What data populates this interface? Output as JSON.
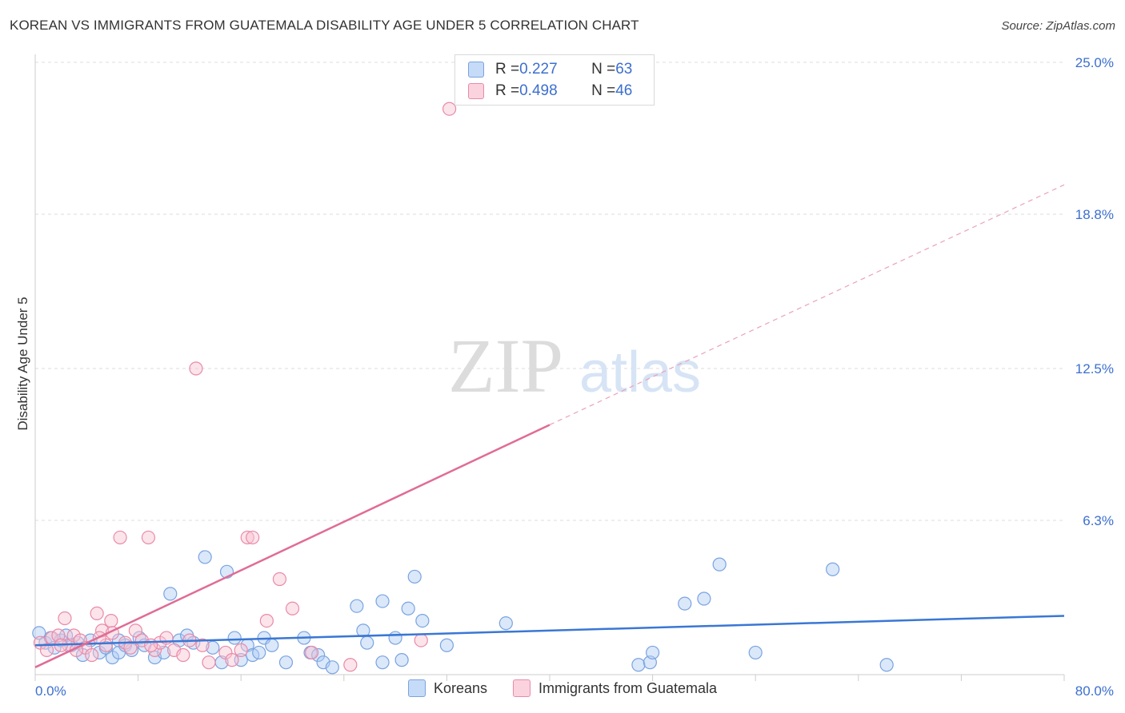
{
  "title": "KOREAN VS IMMIGRANTS FROM GUATEMALA DISABILITY AGE UNDER 5 CORRELATION CHART",
  "source": "Source: ZipAtlas.com",
  "watermark": {
    "zip": "ZIP",
    "atlas": "atlas"
  },
  "legend": {
    "r_label": "R = ",
    "n_label": "N = ",
    "rows": [
      {
        "name": "Koreans",
        "r": "0.227",
        "n": "63",
        "fill": "#aecbf3",
        "stroke": "#7aa3e0"
      },
      {
        "name": "Immigrants from Guatemala",
        "r": "0.498",
        "n": "46",
        "fill": "#f8c3d3",
        "stroke": "#e98aa8"
      }
    ]
  },
  "chart_data": {
    "type": "scatter",
    "title": "KOREAN VS IMMIGRANTS FROM GUATEMALA DISABILITY AGE UNDER 5 CORRELATION CHART",
    "xlabel": "",
    "ylabel": "Disability Age Under 5",
    "xlim": [
      0,
      80
    ],
    "ylim": [
      0,
      25
    ],
    "x_tick_labels": [
      "0.0%",
      "80.0%"
    ],
    "y_ticks": [
      6.3,
      12.5,
      18.8,
      25.0
    ],
    "y_tick_labels": [
      "6.3%",
      "12.5%",
      "18.8%",
      "25.0%"
    ],
    "grid": true,
    "series": [
      {
        "name": "Koreans",
        "color": "#7aa3e0",
        "line_color": "#3a77d4",
        "points": [
          [
            0.3,
            1.7
          ],
          [
            0.8,
            1.3
          ],
          [
            1.2,
            1.5
          ],
          [
            1.5,
            1.1
          ],
          [
            2.0,
            1.4
          ],
          [
            2.4,
            1.6
          ],
          [
            2.8,
            1.2
          ],
          [
            3.3,
            1.3
          ],
          [
            3.7,
            0.8
          ],
          [
            4.3,
            1.4
          ],
          [
            5.0,
            0.9
          ],
          [
            5.5,
            1.1
          ],
          [
            6.0,
            0.7
          ],
          [
            6.5,
            0.9
          ],
          [
            7.0,
            1.2
          ],
          [
            7.5,
            1.0
          ],
          [
            8.1,
            1.5
          ],
          [
            8.5,
            1.2
          ],
          [
            9.3,
            0.7
          ],
          [
            10.0,
            0.9
          ],
          [
            10.5,
            3.3
          ],
          [
            11.2,
            1.4
          ],
          [
            11.8,
            1.6
          ],
          [
            12.3,
            1.3
          ],
          [
            13.2,
            4.8
          ],
          [
            13.8,
            1.1
          ],
          [
            14.5,
            0.5
          ],
          [
            14.9,
            4.2
          ],
          [
            15.5,
            1.5
          ],
          [
            16.0,
            0.6
          ],
          [
            16.5,
            1.2
          ],
          [
            16.9,
            0.8
          ],
          [
            17.4,
            0.9
          ],
          [
            17.8,
            1.5
          ],
          [
            18.4,
            1.2
          ],
          [
            19.5,
            0.5
          ],
          [
            20.9,
            1.5
          ],
          [
            21.4,
            0.9
          ],
          [
            22.0,
            0.8
          ],
          [
            22.4,
            0.5
          ],
          [
            23.1,
            0.3
          ],
          [
            25.0,
            2.8
          ],
          [
            25.5,
            1.8
          ],
          [
            25.8,
            1.3
          ],
          [
            27.0,
            0.5
          ],
          [
            28.0,
            1.5
          ],
          [
            28.5,
            0.6
          ],
          [
            29.0,
            2.7
          ],
          [
            29.5,
            4.0
          ],
          [
            30.1,
            2.2
          ],
          [
            32.0,
            1.2
          ],
          [
            36.6,
            2.1
          ],
          [
            46.9,
            0.4
          ],
          [
            47.8,
            0.5
          ],
          [
            48.0,
            0.9
          ],
          [
            50.5,
            2.9
          ],
          [
            52.0,
            3.1
          ],
          [
            53.2,
            4.5
          ],
          [
            56.0,
            0.9
          ],
          [
            62.0,
            4.3
          ],
          [
            66.2,
            0.4
          ],
          [
            27.0,
            3.0
          ],
          [
            6.5,
            1.4
          ]
        ],
        "trend": {
          "x0": 0,
          "y0": 1.2,
          "x1": 80,
          "y1": 2.4
        }
      },
      {
        "name": "Immigrants from Guatemala",
        "color": "#e98aa8",
        "line_color": "#e06c96",
        "points": [
          [
            0.4,
            1.3
          ],
          [
            0.9,
            1.0
          ],
          [
            1.3,
            1.5
          ],
          [
            1.8,
            1.6
          ],
          [
            2.3,
            2.3
          ],
          [
            2.6,
            1.2
          ],
          [
            3.0,
            1.6
          ],
          [
            3.5,
            1.4
          ],
          [
            3.9,
            1.1
          ],
          [
            4.4,
            0.8
          ],
          [
            4.8,
            2.5
          ],
          [
            5.2,
            1.8
          ],
          [
            5.5,
            1.2
          ],
          [
            5.9,
            2.2
          ],
          [
            6.0,
            1.7
          ],
          [
            6.6,
            5.6
          ],
          [
            7.0,
            1.3
          ],
          [
            7.4,
            1.1
          ],
          [
            7.8,
            1.8
          ],
          [
            8.3,
            1.4
          ],
          [
            8.8,
            5.6
          ],
          [
            9.3,
            1.0
          ],
          [
            9.7,
            1.3
          ],
          [
            10.2,
            1.5
          ],
          [
            10.8,
            1.0
          ],
          [
            11.5,
            0.8
          ],
          [
            12.0,
            1.4
          ],
          [
            12.5,
            12.5
          ],
          [
            13.0,
            1.2
          ],
          [
            13.5,
            0.5
          ],
          [
            14.8,
            0.9
          ],
          [
            15.3,
            0.6
          ],
          [
            16.0,
            1.0
          ],
          [
            16.5,
            5.6
          ],
          [
            16.9,
            5.6
          ],
          [
            18.0,
            2.2
          ],
          [
            19.0,
            3.9
          ],
          [
            20.0,
            2.7
          ],
          [
            21.5,
            0.9
          ],
          [
            24.5,
            0.4
          ],
          [
            30.0,
            1.4
          ],
          [
            32.2,
            23.1
          ],
          [
            2.0,
            1.2
          ],
          [
            3.2,
            1.0
          ],
          [
            5.0,
            1.5
          ],
          [
            9.0,
            1.2
          ]
        ],
        "trend": {
          "x0": 0,
          "y0": 0.3,
          "x1": 40,
          "y1": 10.2
        },
        "trend_extension": {
          "x0": 40,
          "y0": 10.2,
          "x1": 80,
          "y1": 20.0
        }
      }
    ]
  }
}
